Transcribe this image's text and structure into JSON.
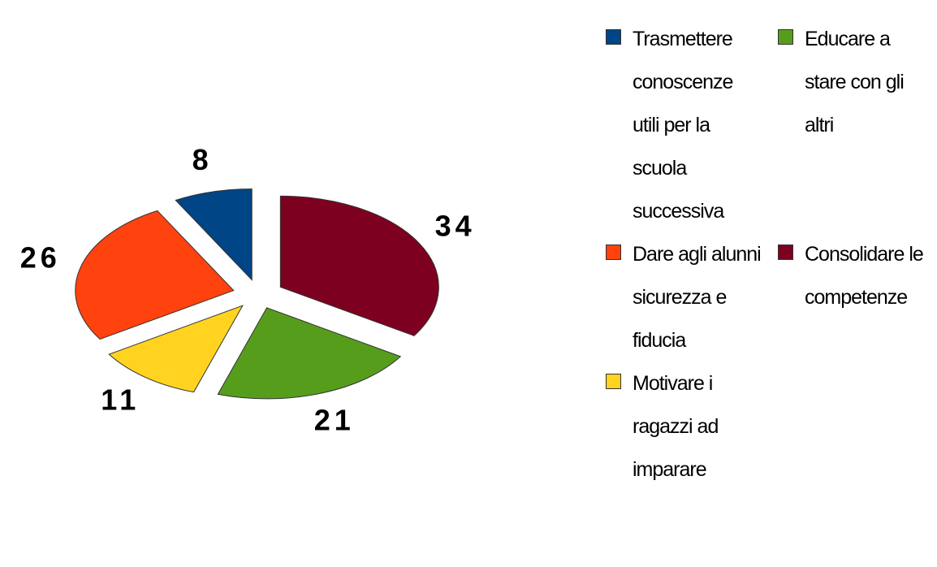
{
  "chart_data": {
    "type": "pie",
    "categories": [
      "Trasmettere conoscenze utili per la scuola successiva",
      "Dare agli alunni sicurezza e fiducia",
      "Motivare i ragazzi ad imparare",
      "Educare a stare con gli altri",
      "Consolidare le competenze"
    ],
    "values": [
      8,
      26,
      11,
      21,
      34
    ],
    "colors": [
      "#004586",
      "#ff420e",
      "#ffd320",
      "#579d1c",
      "#7e0021"
    ],
    "legend": "right"
  }
}
